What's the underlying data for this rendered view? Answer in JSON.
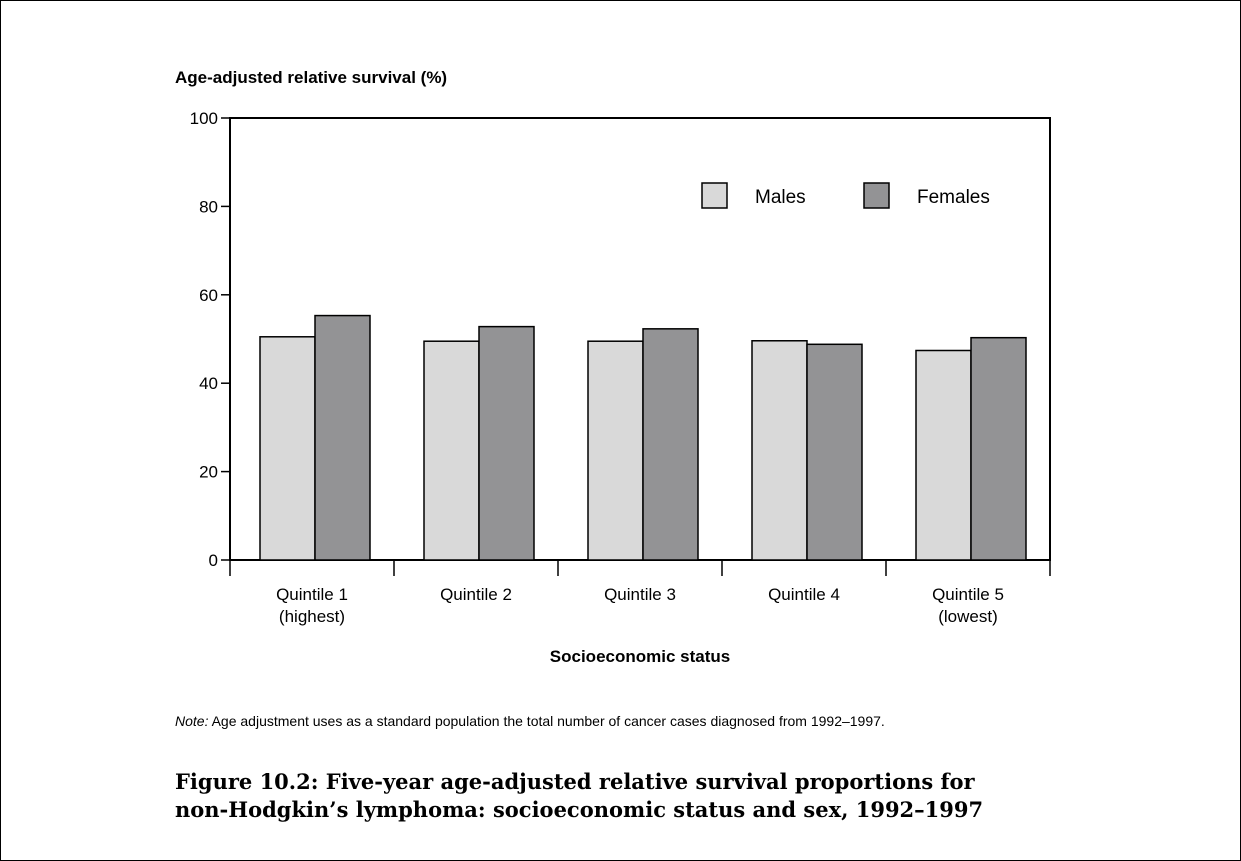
{
  "chart_data": {
    "type": "bar",
    "ylabel": "Age-adjusted relative survival (%)",
    "xlabel": "Socioeconomic status",
    "ylim": [
      0,
      100
    ],
    "yticks": [
      0,
      20,
      40,
      60,
      80,
      100
    ],
    "categories": [
      [
        "Quintile 1",
        "(highest)"
      ],
      [
        "Quintile 2"
      ],
      [
        "Quintile 3"
      ],
      [
        "Quintile 4"
      ],
      [
        "Quintile 5",
        "(lowest)"
      ]
    ],
    "series": [
      {
        "name": "Males",
        "values": [
          50.5,
          49.5,
          49.5,
          49.6,
          47.4
        ],
        "color": "#d9d9d9"
      },
      {
        "name": "Females",
        "values": [
          55.3,
          52.8,
          52.3,
          48.8,
          50.3
        ],
        "color": "#939395"
      }
    ],
    "legend_position": "top-right",
    "grid": false
  },
  "note": {
    "prefix": "Note:",
    "text": " Age adjustment uses as a standard population the total number of cancer cases diagnosed from 1992–1997."
  },
  "caption": {
    "line1": "Figure 10.2: Five-year age-adjusted relative survival proportions for",
    "line2": "non-Hodgkin’s lymphoma: socioeconomic status and sex, 1992–1997"
  }
}
